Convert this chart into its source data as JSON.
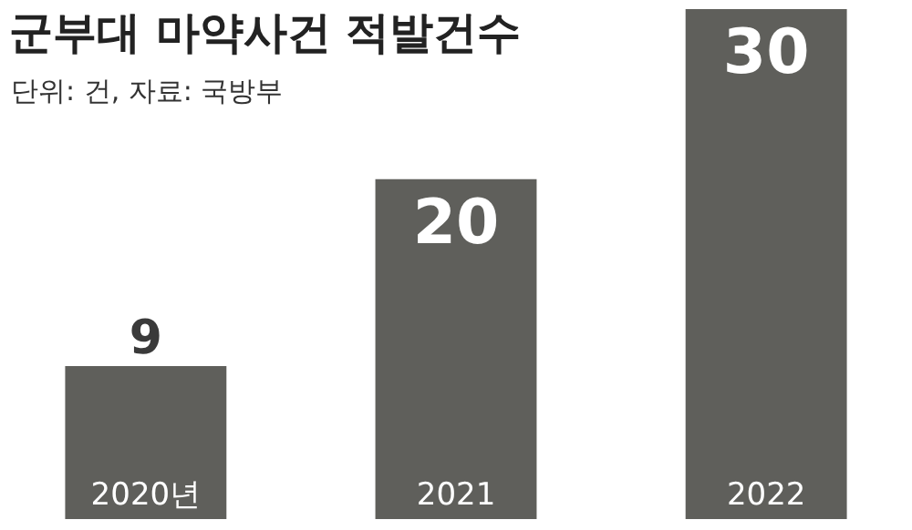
{
  "chart_data": {
    "type": "bar",
    "title": "군부대 마약사건 적발건수",
    "subtitle": "단위: 건, 자료: 국방부",
    "categories": [
      "2020년",
      "2021",
      "2022"
    ],
    "values": [
      9,
      20,
      30
    ],
    "color": "#5f5f5b",
    "data_labels": true
  }
}
